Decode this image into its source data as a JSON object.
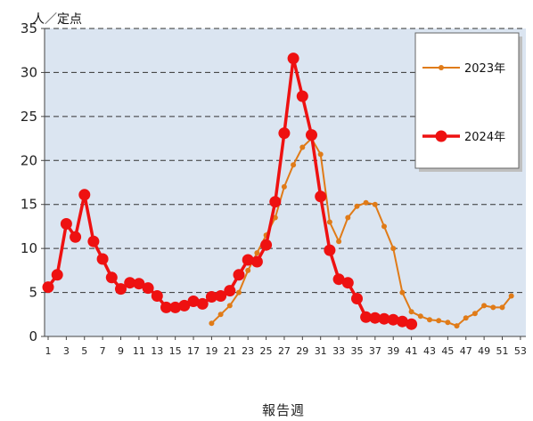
{
  "chart_data": {
    "type": "line",
    "ylabel": "人／定点",
    "xlabel": "報告週",
    "ylim": [
      0,
      35
    ],
    "yticks": [
      0,
      5,
      10,
      15,
      20,
      25,
      30,
      35
    ],
    "xlim": [
      1,
      53
    ],
    "xticks": [
      1,
      3,
      5,
      7,
      9,
      11,
      13,
      15,
      17,
      19,
      21,
      23,
      25,
      27,
      29,
      31,
      33,
      35,
      37,
      39,
      41,
      43,
      45,
      47,
      49,
      51,
      53
    ],
    "grid": "horizontal dashed",
    "legend_position": "top-right",
    "background": "#dbe5f1",
    "series": [
      {
        "name": "2023年",
        "color": "#e07b18",
        "x": [
          19,
          20,
          21,
          22,
          23,
          24,
          25,
          26,
          27,
          28,
          29,
          30,
          31,
          32,
          33,
          34,
          35,
          36,
          37,
          38,
          39,
          40,
          41,
          42,
          43,
          44,
          45,
          46,
          47,
          48,
          49,
          50,
          51,
          52
        ],
        "values": [
          1.5,
          2.5,
          3.5,
          5.0,
          7.5,
          9.5,
          11.5,
          13.5,
          17.0,
          19.5,
          21.5,
          22.5,
          20.7,
          13.0,
          10.8,
          13.5,
          14.8,
          15.2,
          15.0,
          12.5,
          10.0,
          5.0,
          2.8,
          2.3,
          1.9,
          1.8,
          1.6,
          1.2,
          2.1,
          2.6,
          3.5,
          3.3,
          3.3,
          4.6
        ]
      },
      {
        "name": "2024年",
        "color": "#ee1111",
        "x": [
          1,
          2,
          3,
          4,
          5,
          6,
          7,
          8,
          9,
          10,
          11,
          12,
          13,
          14,
          15,
          16,
          17,
          18,
          19,
          20,
          21,
          22,
          23,
          24,
          25,
          26,
          27,
          28,
          29,
          30,
          31,
          32,
          33,
          34,
          35,
          36,
          37,
          38,
          39,
          40,
          41
        ],
        "values": [
          5.6,
          7.0,
          12.8,
          11.3,
          16.1,
          10.8,
          8.8,
          6.7,
          5.4,
          6.1,
          6.0,
          5.5,
          4.6,
          3.3,
          3.3,
          3.5,
          4.0,
          3.7,
          4.5,
          4.6,
          5.2,
          7.0,
          8.7,
          8.5,
          10.4,
          15.3,
          23.1,
          31.6,
          27.3,
          22.9,
          15.9,
          9.8,
          6.5,
          6.1,
          4.3,
          2.2,
          2.1,
          2.0,
          1.9,
          1.7,
          1.4
        ]
      }
    ]
  }
}
